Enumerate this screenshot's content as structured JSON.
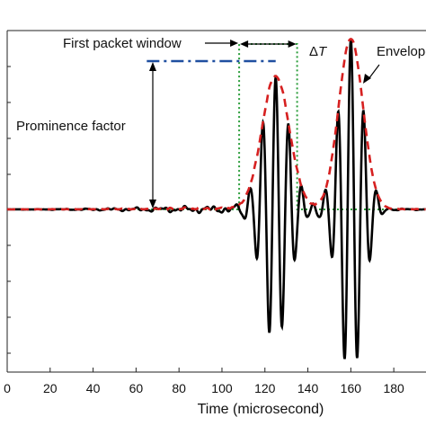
{
  "chart_data": {
    "type": "line",
    "title": "",
    "xlabel": "Time (microsecond)",
    "ylabel": "",
    "xlim": [
      0,
      195
    ],
    "ylim": [
      -1.05,
      1.05
    ],
    "xticks": [
      0,
      20,
      40,
      60,
      80,
      100,
      120,
      140,
      160,
      180
    ],
    "grid": false,
    "series": [
      {
        "style": "solid-black",
        "color": "#000000",
        "description": "received waveform with two wave packets",
        "packets": [
          {
            "center": 125,
            "amplitude": 0.78,
            "width": 9,
            "period": 6
          },
          {
            "center": 160,
            "amplitude": 1.0,
            "width": 8,
            "period": 6
          }
        ]
      },
      {
        "name": "Envelope",
        "style": "dashed-red",
        "color": "#d62020",
        "description": "signal envelope"
      },
      {
        "style": "dotted-green",
        "color": "#2a9d3a",
        "description": "first packet window",
        "window": [
          108,
          135
        ],
        "height": 0.78
      },
      {
        "style": "dashdot-blue",
        "color": "#1f4fa0",
        "description": "prominence reference level",
        "x": [
          65,
          125
        ],
        "y": [
          0.78,
          0.78
        ]
      }
    ],
    "annotations": {
      "first_packet_window": "First packet window",
      "delta_t_symbol": "Δ",
      "delta_t_var": "T",
      "envelope": "Envelope",
      "prominence": "Prominence factor"
    }
  }
}
